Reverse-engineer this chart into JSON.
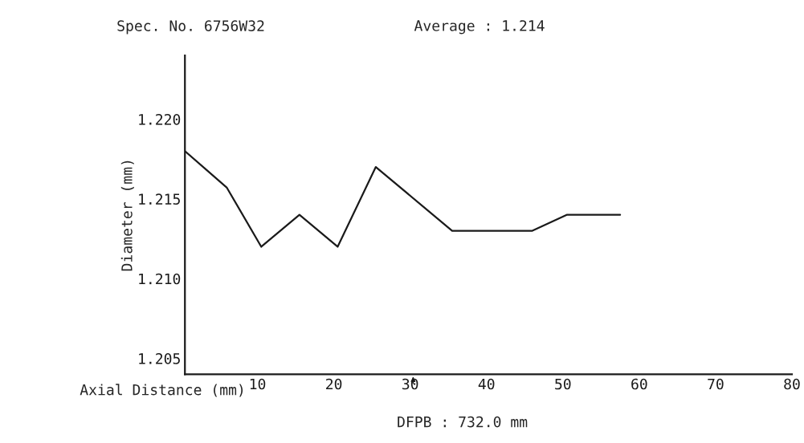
{
  "chart_data": {
    "type": "line",
    "title": "Spec. No. 6756W32",
    "subtitle": "Average : 1.214",
    "xlabel": "Axial Distance (mm)",
    "ylabel": "Diameter (mm)",
    "x": [
      0.5,
      6,
      10.5,
      15.5,
      20.5,
      25.5,
      35.5,
      46,
      50.5,
      57.5
    ],
    "series": [
      {
        "color": "#1a1a1a",
        "values": [
          1.218,
          1.2157,
          1.212,
          1.214,
          1.212,
          1.217,
          1.213,
          1.213,
          1.214,
          1.214
        ]
      }
    ],
    "xlim": [
      0.5,
      80
    ],
    "xticks": [
      10,
      20,
      30,
      40,
      50,
      60,
      70,
      80
    ],
    "ylim": [
      1.204,
      1.224
    ],
    "yticks": [
      {
        "value": 1.205,
        "label": "1.205"
      },
      {
        "value": 1.21,
        "label": "1.210"
      },
      {
        "value": 1.215,
        "label": "1.215"
      },
      {
        "value": 1.22,
        "label": "1.220"
      }
    ],
    "annotations": [
      "DFPB : 732.0 mm"
    ],
    "grid": false,
    "legend": false,
    "marker": "none",
    "line_style": "solid"
  }
}
